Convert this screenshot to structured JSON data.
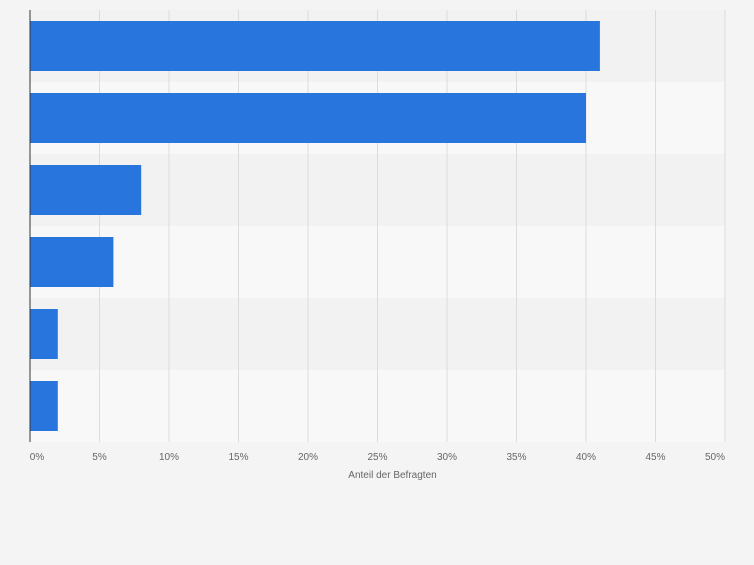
{
  "chart_data": {
    "type": "bar",
    "orientation": "horizontal",
    "categories": [
      "",
      "",
      "",
      "",
      "",
      ""
    ],
    "values": [
      41,
      40,
      8,
      6,
      2,
      2
    ],
    "xlabel": "Anteil der Befragten",
    "ylabel": "",
    "xlim": [
      0,
      50
    ],
    "xticks": [
      0,
      5,
      10,
      15,
      20,
      25,
      30,
      35,
      40,
      45,
      50
    ],
    "tick_suffix": "%",
    "grid": true,
    "legend": "none",
    "colors": {
      "bar": "#2876dd",
      "band_dark": "#f2f2f2",
      "band_light": "#f8f8f8",
      "grid": "#dcdcdc",
      "axis": "#333333",
      "tick_text": "#666666",
      "background": "#f4f4f4"
    }
  }
}
